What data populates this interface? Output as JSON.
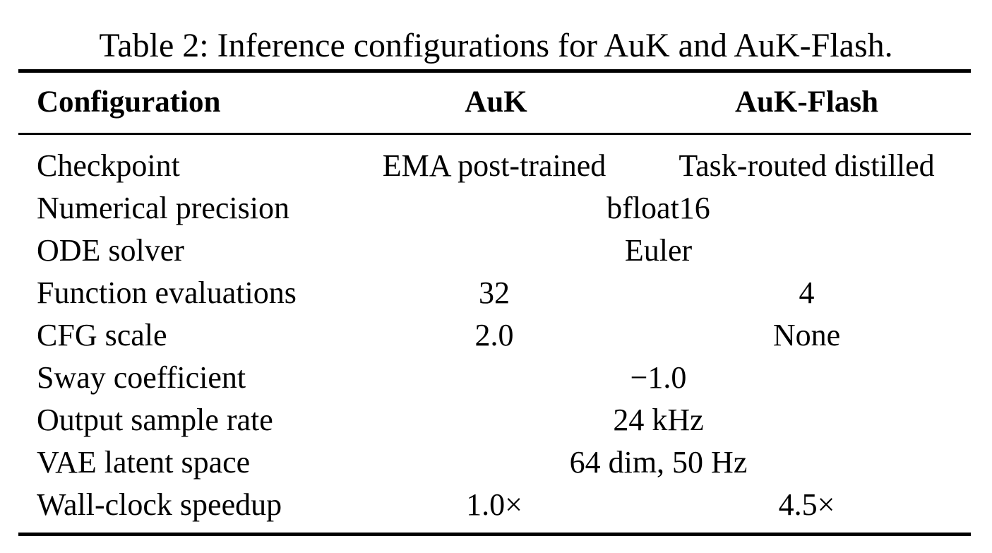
{
  "caption": "Table 2: Inference configurations for AuK and AuK-Flash.",
  "header": {
    "configuration": "Configuration",
    "auk": "AuK",
    "auk_flash": "AuK-Flash"
  },
  "rows": [
    {
      "label": "Checkpoint",
      "auk": "EMA post-trained",
      "auk_flash": "Task-routed distilled"
    },
    {
      "label": "Numerical precision",
      "shared": "bfloat16"
    },
    {
      "label": "ODE solver",
      "shared": "Euler"
    },
    {
      "label": "Function evaluations",
      "auk": "32",
      "auk_flash": "4"
    },
    {
      "label": "CFG scale",
      "auk": "2.0",
      "auk_flash": "None"
    },
    {
      "label": "Sway coefficient",
      "shared": "−1.0"
    },
    {
      "label": "Output sample rate",
      "shared": "24 kHz"
    },
    {
      "label": "VAE latent space",
      "shared": "64 dim, 50 Hz"
    },
    {
      "label": "Wall-clock speedup",
      "auk": "1.0×",
      "auk_flash": "4.5×"
    }
  ]
}
